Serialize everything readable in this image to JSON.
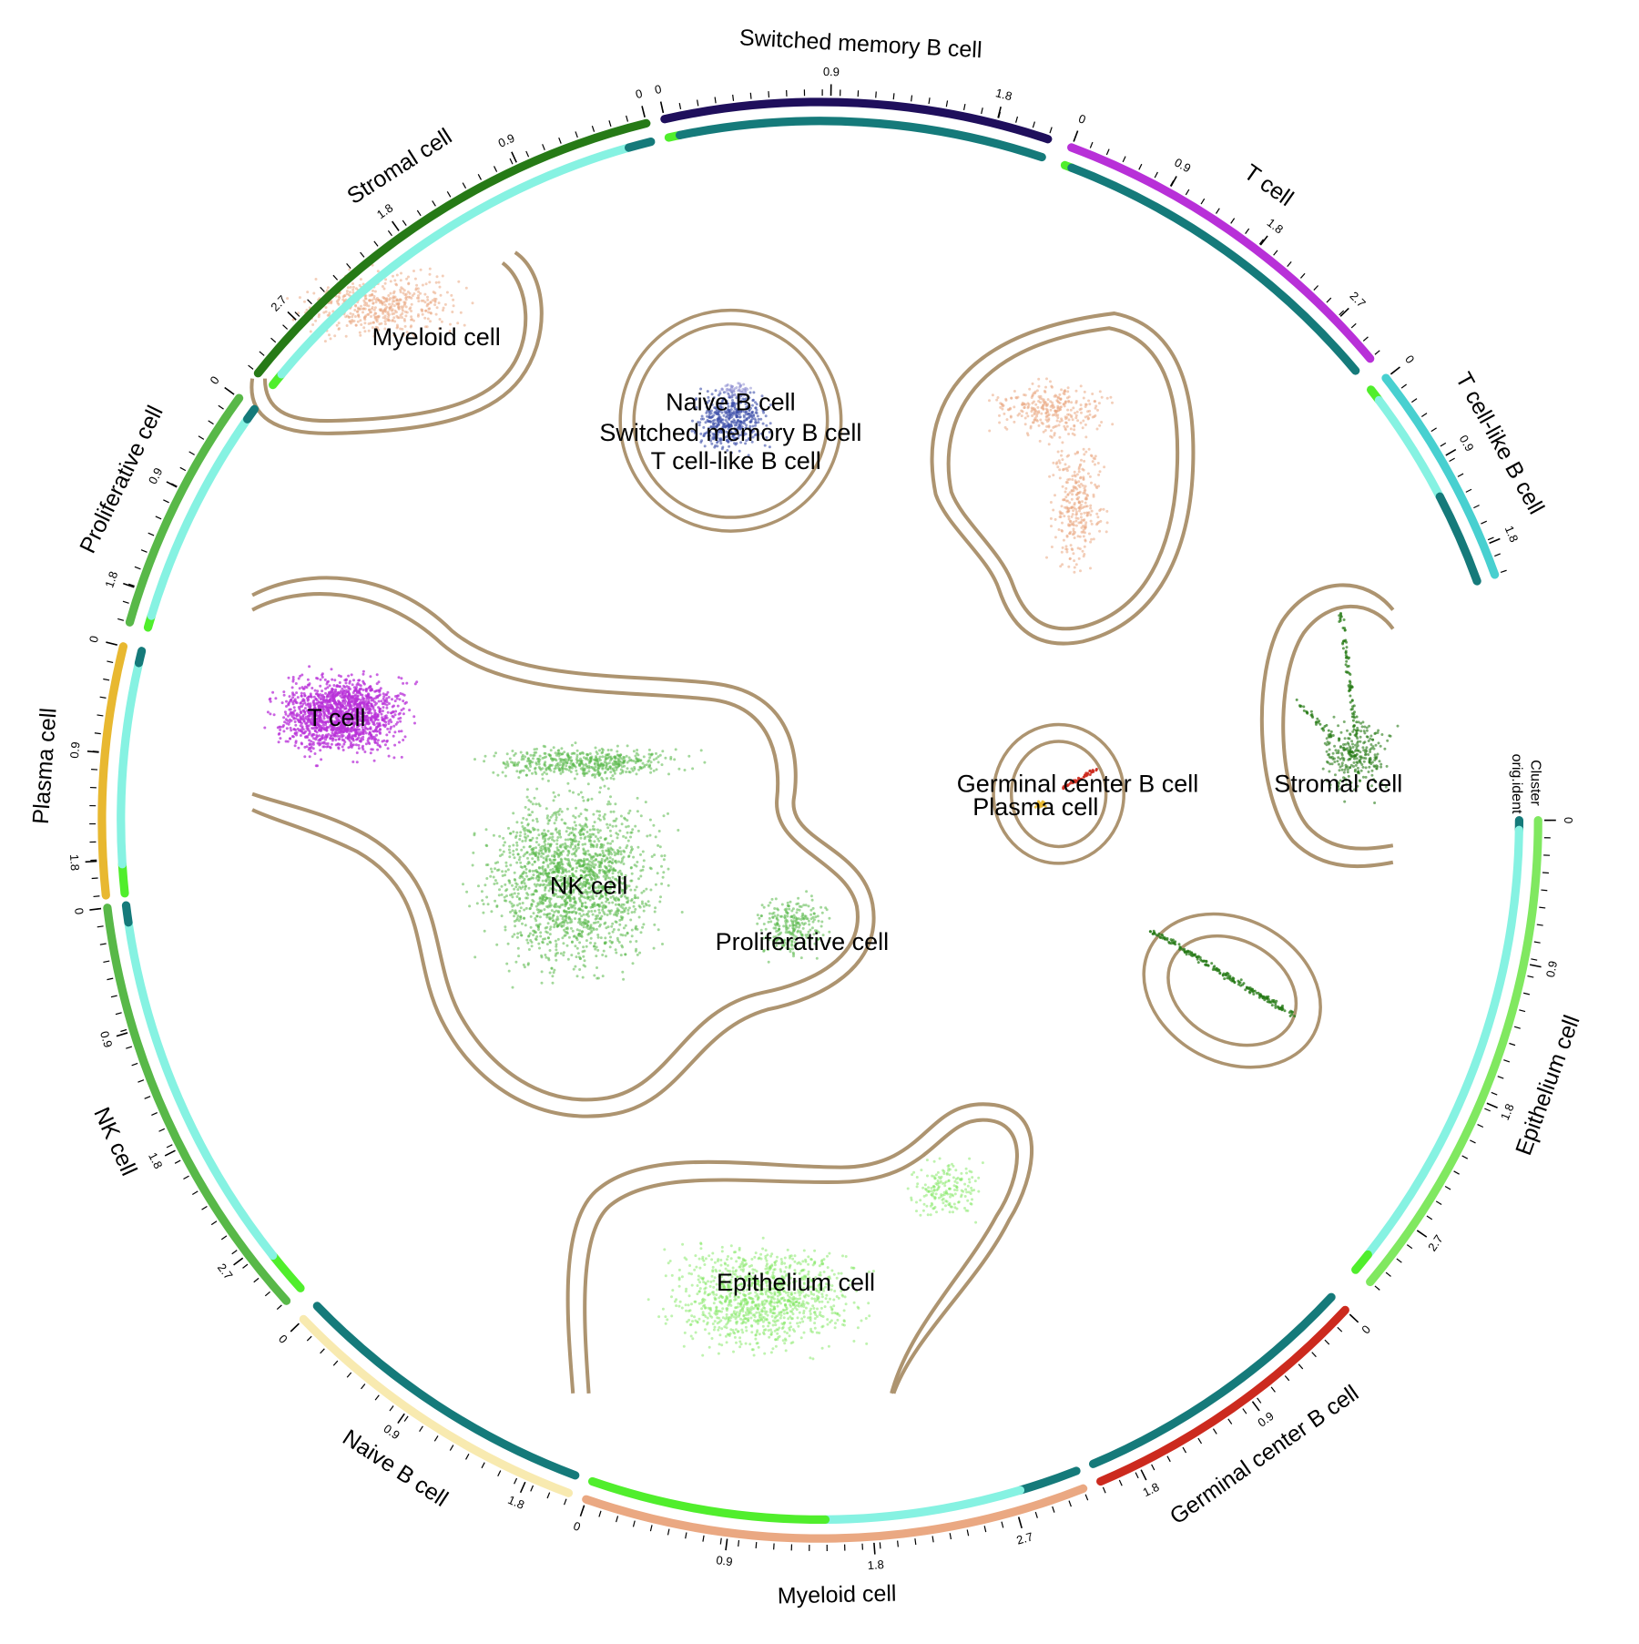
{
  "chart_data": {
    "type": "scatter",
    "title": "",
    "colors": {
      "Switched memory B cell": "#1f0f5c",
      "T cell": "#b830d8",
      "T cell-like B cell": "#48d0d0",
      "Epithelium cell": "#80e860",
      "Germinal center B cell": "#cc2a1e",
      "Myeloid cell": "#eaa882",
      "Naive B cell": "#f8eab0",
      "NK cell": "#58b848",
      "Plasma cell": "#e8b830",
      "Proliferative cell": "#58b848",
      "Stromal cell": "#267a16",
      "contour": "#ad9470",
      "cluster_teal": "#157a7a",
      "cluster_aqua": "#86f2e2",
      "cluster_green": "#50ee2c"
    },
    "track_labels": [
      "Cluster",
      "orig.ident"
    ],
    "sectors": [
      {
        "name": "Switched memory B cell",
        "ticks": [
          "0",
          "0.9",
          "1.8"
        ]
      },
      {
        "name": "T cell",
        "ticks": [
          "0",
          "0.9",
          "1.8",
          "2.7"
        ]
      },
      {
        "name": "T cell-like B cell",
        "ticks": [
          "0",
          "0.9",
          "1.8"
        ]
      },
      {
        "name": "Epithelium cell",
        "ticks": [
          "0",
          "0.9",
          "1.8",
          "2.7"
        ]
      },
      {
        "name": "Germinal center B cell",
        "ticks": [
          "0",
          "0.9",
          "1.8"
        ]
      },
      {
        "name": "Myeloid cell",
        "ticks": [
          "0",
          "0.9",
          "1.8",
          "2.7"
        ]
      },
      {
        "name": "Naive B cell",
        "ticks": [
          "0",
          "0.9",
          "1.8"
        ]
      },
      {
        "name": "NK cell",
        "ticks": [
          "0",
          "0.9",
          "1.8",
          "2.7"
        ]
      },
      {
        "name": "Plasma cell",
        "ticks": [
          "0",
          "0.9",
          "1.8"
        ]
      },
      {
        "name": "Proliferative cell",
        "ticks": [
          "0",
          "0.9",
          "1.8"
        ]
      },
      {
        "name": "Stromal cell",
        "ticks": [
          "0",
          "0.9",
          "1.8",
          "2.7"
        ]
      }
    ],
    "cluster_labels": [
      "Myeloid cell",
      "Naive B cell",
      "Switched memory B cell",
      "T cell-like B cell",
      "T cell",
      "NK cell",
      "Proliferative cell",
      "Germinal center B cell",
      "Plasma cell",
      "Stromal cell",
      "Epithelium cell"
    ]
  }
}
